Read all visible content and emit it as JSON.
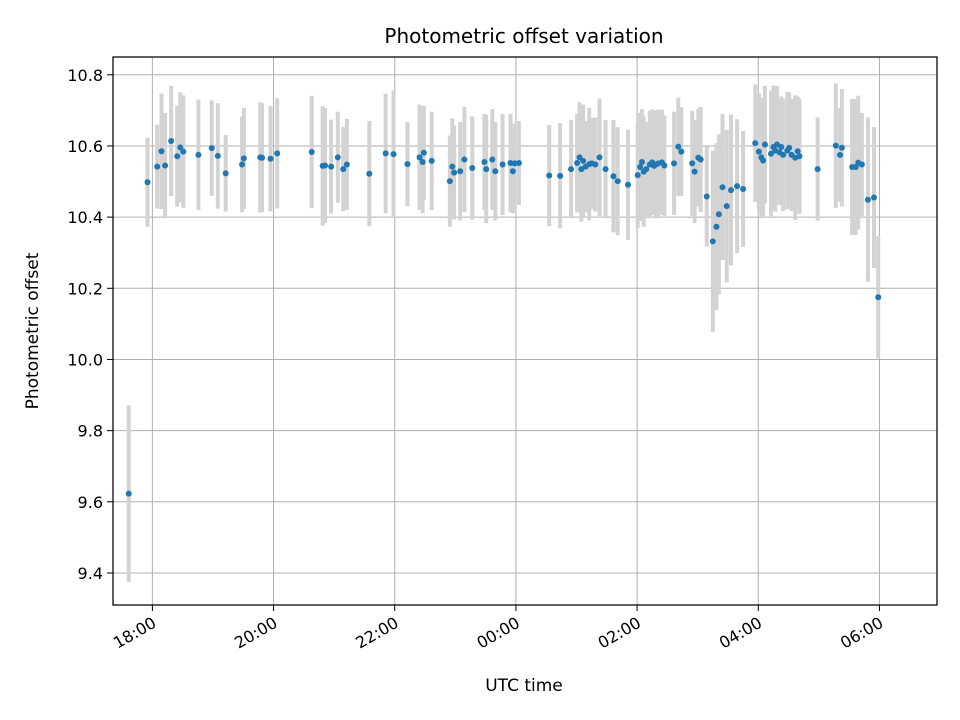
{
  "chart_data": {
    "type": "scatter",
    "title": "Photometric offset variation",
    "xlabel": "UTC time",
    "ylabel": "Photometric offset",
    "x_ticks": [
      "18:00",
      "20:00",
      "22:00",
      "00:00",
      "02:00",
      "04:00",
      "06:00"
    ],
    "y_ticks": [
      "9.4",
      "9.6",
      "9.8",
      "10.0",
      "10.2",
      "10.4",
      "10.6",
      "10.8"
    ],
    "xlim": [
      17.35,
      30.95
    ],
    "ylim": [
      9.31,
      10.85
    ],
    "grid": true,
    "series": [
      {
        "style": "errorbar",
        "x": [
          17.61,
          17.92,
          18.08,
          18.15,
          18.21,
          18.31,
          18.41,
          18.46,
          18.51,
          18.76,
          18.98,
          19.08,
          19.21,
          19.48,
          19.51,
          19.78,
          19.81,
          19.95,
          20.06,
          20.63,
          20.81,
          20.85,
          20.95,
          21.06,
          21.15,
          21.21,
          21.58,
          21.85,
          21.98,
          22.21,
          22.41,
          22.46,
          22.48,
          22.61,
          22.91,
          22.95,
          22.98,
          23.08,
          23.15,
          23.28,
          23.48,
          23.51,
          23.61,
          23.66,
          23.78,
          23.91,
          23.95,
          23.98,
          24.05,
          24.55,
          24.73,
          24.91,
          25.01,
          25.05,
          25.08,
          25.11,
          25.15,
          25.21,
          25.25,
          25.31,
          25.38,
          25.48,
          25.61,
          25.68,
          25.85,
          26.01,
          26.05,
          26.08,
          26.11,
          26.15,
          26.21,
          26.25,
          26.28,
          26.31,
          26.35,
          26.41,
          26.45,
          26.61,
          26.68,
          26.73,
          26.91,
          26.95,
          27.01,
          27.05,
          27.15,
          27.25,
          27.31,
          27.35,
          27.41,
          27.48,
          27.55,
          27.65,
          27.75,
          27.95,
          28.01,
          28.05,
          28.08,
          28.11,
          28.21,
          28.25,
          28.28,
          28.31,
          28.35,
          28.38,
          28.41,
          28.48,
          28.51,
          28.55,
          28.61,
          28.65,
          28.68,
          28.98,
          29.28,
          29.35,
          29.38,
          29.55,
          29.61,
          29.65,
          29.71,
          29.81,
          29.91,
          29.98
        ],
        "y": [
          9.623,
          10.498,
          10.542,
          10.585,
          10.545,
          10.614,
          10.571,
          10.596,
          10.584,
          10.575,
          10.594,
          10.572,
          10.523,
          10.548,
          10.565,
          10.568,
          10.567,
          10.564,
          10.579,
          10.583,
          10.544,
          10.545,
          10.542,
          10.568,
          10.535,
          10.548,
          10.522,
          10.579,
          10.577,
          10.549,
          10.568,
          10.555,
          10.581,
          10.558,
          10.501,
          10.542,
          10.525,
          10.529,
          10.562,
          10.538,
          10.555,
          10.535,
          10.562,
          10.529,
          10.548,
          10.552,
          10.529,
          10.551,
          10.552,
          10.517,
          10.516,
          10.535,
          10.552,
          10.568,
          10.535,
          10.558,
          10.542,
          10.549,
          10.551,
          10.548,
          10.568,
          10.535,
          10.515,
          10.501,
          10.491,
          10.518,
          10.541,
          10.555,
          10.528,
          10.535,
          10.548,
          10.554,
          10.544,
          10.548,
          10.551,
          10.554,
          10.545,
          10.551,
          10.598,
          10.584,
          10.551,
          10.528,
          10.567,
          10.562,
          10.458,
          10.332,
          10.373,
          10.408,
          10.484,
          10.431,
          10.476,
          10.487,
          10.479,
          10.608,
          10.584,
          10.568,
          10.559,
          10.604,
          10.578,
          10.597,
          10.587,
          10.604,
          10.582,
          10.597,
          10.575,
          10.587,
          10.595,
          10.575,
          10.567,
          10.585,
          10.571,
          10.535,
          10.601,
          10.575,
          10.595,
          10.541,
          10.541,
          10.553,
          10.548,
          10.449,
          10.455,
          10.175
        ],
        "err": [
          0.248,
          0.125,
          0.118,
          0.162,
          0.148,
          0.155,
          0.142,
          0.155,
          0.158,
          0.155,
          0.134,
          0.148,
          0.108,
          0.134,
          0.142,
          0.155,
          0.153,
          0.148,
          0.155,
          0.158,
          0.168,
          0.162,
          0.132,
          0.128,
          0.118,
          0.128,
          0.148,
          0.168,
          0.178,
          0.118,
          0.148,
          0.144,
          0.132,
          0.138,
          0.128,
          0.135,
          0.132,
          0.138,
          0.148,
          0.145,
          0.135,
          0.152,
          0.142,
          0.138,
          0.142,
          0.138,
          0.118,
          0.112,
          0.118,
          0.142,
          0.148,
          0.138,
          0.138,
          0.155,
          0.148,
          0.158,
          0.128,
          0.158,
          0.128,
          0.132,
          0.165,
          0.138,
          0.158,
          0.152,
          0.155,
          0.148,
          0.152,
          0.148,
          0.155,
          0.132,
          0.151,
          0.148,
          0.138,
          0.152,
          0.151,
          0.148,
          0.141,
          0.145,
          0.138,
          0.125,
          0.148,
          0.145,
          0.138,
          0.148,
          0.141,
          0.255,
          0.235,
          0.225,
          0.205,
          0.215,
          0.212,
          0.188,
          0.163,
          0.165,
          0.165,
          0.168,
          0.162,
          0.165,
          0.178,
          0.173,
          0.172,
          0.165,
          0.148,
          0.142,
          0.158,
          0.165,
          0.155,
          0.158,
          0.175,
          0.154,
          0.162,
          0.145,
          0.175,
          0.132,
          0.165,
          0.191,
          0.191,
          0.188,
          0.145,
          0.231,
          0.198,
          0.171
        ],
        "point_color": "#1f77b4",
        "error_color": "#d3d3d3"
      }
    ]
  }
}
